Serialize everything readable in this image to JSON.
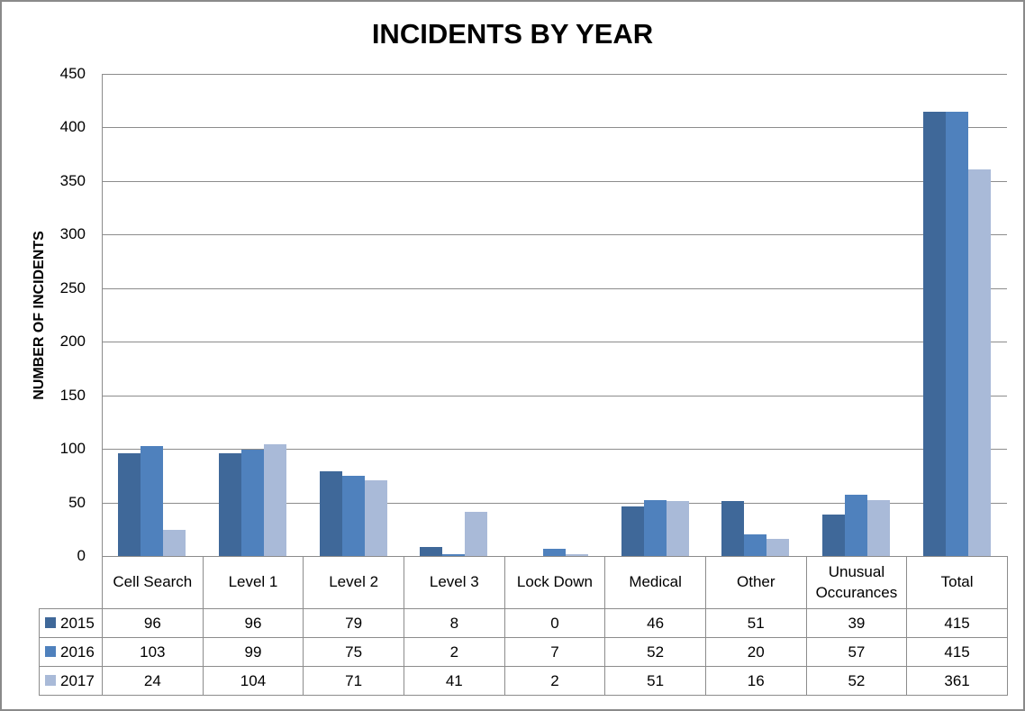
{
  "chart_data": {
    "type": "bar",
    "title": "INCIDENTS BY YEAR",
    "xlabel": "",
    "ylabel": "NUMBER OF INCIDENTS",
    "ylim": [
      0,
      450
    ],
    "yticks": [
      0,
      50,
      100,
      150,
      200,
      250,
      300,
      350,
      400,
      450
    ],
    "grid": true,
    "legend_position": "data-table",
    "categories": [
      "Cell Search",
      "Level 1",
      "Level 2",
      "Level 3",
      "Lock Down",
      "Medical",
      "Other",
      "Unusual Occurances",
      "Total"
    ],
    "series": [
      {
        "name": "2015",
        "color": "#3F6899",
        "values": [
          96,
          96,
          79,
          8,
          0,
          46,
          51,
          39,
          415
        ]
      },
      {
        "name": "2016",
        "color": "#4F81BD",
        "values": [
          103,
          99,
          75,
          2,
          7,
          52,
          20,
          57,
          415
        ]
      },
      {
        "name": "2017",
        "color": "#A9BAD8",
        "values": [
          24,
          104,
          71,
          41,
          2,
          51,
          16,
          52,
          361
        ]
      }
    ]
  },
  "table": {
    "category_labels": [
      "Cell Search",
      "Level 1",
      "Level 2",
      "Level 3",
      "Lock Down",
      "Medical",
      "Other",
      "Unusual\nOccurances",
      "Total"
    ]
  }
}
